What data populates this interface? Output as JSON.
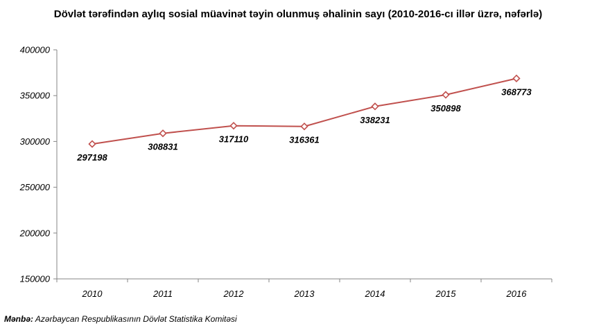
{
  "chart_data": {
    "type": "line",
    "title": "Dövlət tərəfindən aylıq sosial müavinət təyin olunmuş əhalinin sayı (2010-2016-cı illər üzrə, nəfərlə)",
    "categories": [
      "2010",
      "2011",
      "2012",
      "2013",
      "2014",
      "2015",
      "2016"
    ],
    "series": [
      {
        "values": [
          297198,
          308831,
          317110,
          316361,
          338231,
          350898,
          368773
        ],
        "data_labels": [
          "297198",
          "308831",
          "317110",
          "316361",
          "338231",
          "350898",
          "368773"
        ],
        "color": "#c0504d",
        "marker": "diamond"
      }
    ],
    "ylim": [
      150000,
      400000
    ],
    "yticks": [
      150000,
      200000,
      250000,
      300000,
      350000,
      400000
    ],
    "ytick_labels": [
      "150000",
      "200000",
      "250000",
      "300000",
      "350000",
      "400000"
    ],
    "grid": false,
    "legend": "none",
    "axis_color": "#868686"
  },
  "source": {
    "label": "Mənbə:",
    "text": " Azərbaycan Respublikasının Dövlət  Statistika Komitəsi"
  }
}
